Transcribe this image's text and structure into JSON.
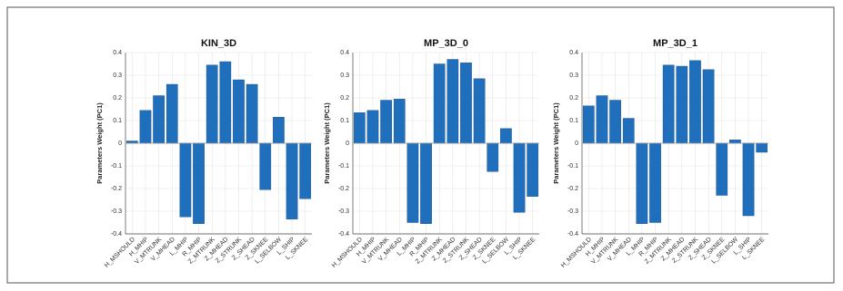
{
  "chart_data": [
    {
      "type": "bar",
      "title": "KIN_3D",
      "y_label": "Parameters Weight (PC1)",
      "color": "#1f6fbd",
      "grid": true,
      "categories": [
        "H_MSHOULD",
        "H_MHIP",
        "V_MTRUNK",
        "V_MHEAD",
        "L_MHIP",
        "R_MHIP",
        "Z_MTRUNK",
        "Z_MHEAD",
        "Z_STRUNK",
        "Z_SHEAD",
        "Z_SKNEE",
        "L_SELBOW",
        "L_SHIP",
        "L_SKNEE"
      ],
      "values": [
        0.01,
        0.145,
        0.21,
        0.26,
        -0.325,
        -0.355,
        0.345,
        0.36,
        0.28,
        0.26,
        -0.205,
        0.115,
        -0.335,
        -0.245
      ],
      "ylim": [
        -0.4,
        0.4
      ],
      "yticks": [
        -0.4,
        -0.3,
        -0.2,
        -0.1,
        0,
        0.1,
        0.2,
        0.3,
        0.4
      ]
    },
    {
      "type": "bar",
      "title": "MP_3D_0",
      "y_label": "Parameters Weight (PC1)",
      "color": "#1f6fbd",
      "grid": true,
      "categories": [
        "H_MSHOULD",
        "H_MHIP",
        "V_MTRUNK",
        "V_MHEAD",
        "L_MHIP",
        "R_MHIP",
        "Z_MTRUNK",
        "Z_MHEAD",
        "Z_STRUNK",
        "Z_SHEAD",
        "Z_SKNEE",
        "L_SELBOW",
        "L_SHIP",
        "L_SKNEE"
      ],
      "values": [
        0.135,
        0.145,
        0.19,
        0.195,
        -0.35,
        -0.355,
        0.35,
        0.37,
        0.355,
        0.285,
        -0.125,
        0.065,
        -0.305,
        -0.235
      ],
      "ylim": [
        -0.4,
        0.4
      ],
      "yticks": [
        -0.4,
        -0.3,
        -0.2,
        -0.1,
        0,
        0.1,
        0.2,
        0.3,
        0.4
      ]
    },
    {
      "type": "bar",
      "title": "MP_3D_1",
      "y_label": "Parameters Weight (PC1)",
      "color": "#1f6fbd",
      "grid": true,
      "categories": [
        "H_MSHOULD",
        "H_MHIP",
        "V_MTRUNK",
        "V_MHEAD",
        "L_MHIP",
        "R_MHIP",
        "Z_MTRUNK",
        "Z_MHEAD",
        "Z_STRUNK",
        "Z_SHEAD",
        "Z_SKNEE",
        "L_SELBOW",
        "L_SHIP",
        "L_SKNEE"
      ],
      "values": [
        0.165,
        0.21,
        0.19,
        0.11,
        -0.355,
        -0.35,
        0.345,
        0.34,
        0.365,
        0.325,
        -0.23,
        0.015,
        -0.32,
        -0.04
      ],
      "ylim": [
        -0.4,
        0.4
      ],
      "yticks": [
        -0.4,
        -0.3,
        -0.2,
        -0.1,
        0,
        0.1,
        0.2,
        0.3,
        0.4
      ]
    }
  ]
}
